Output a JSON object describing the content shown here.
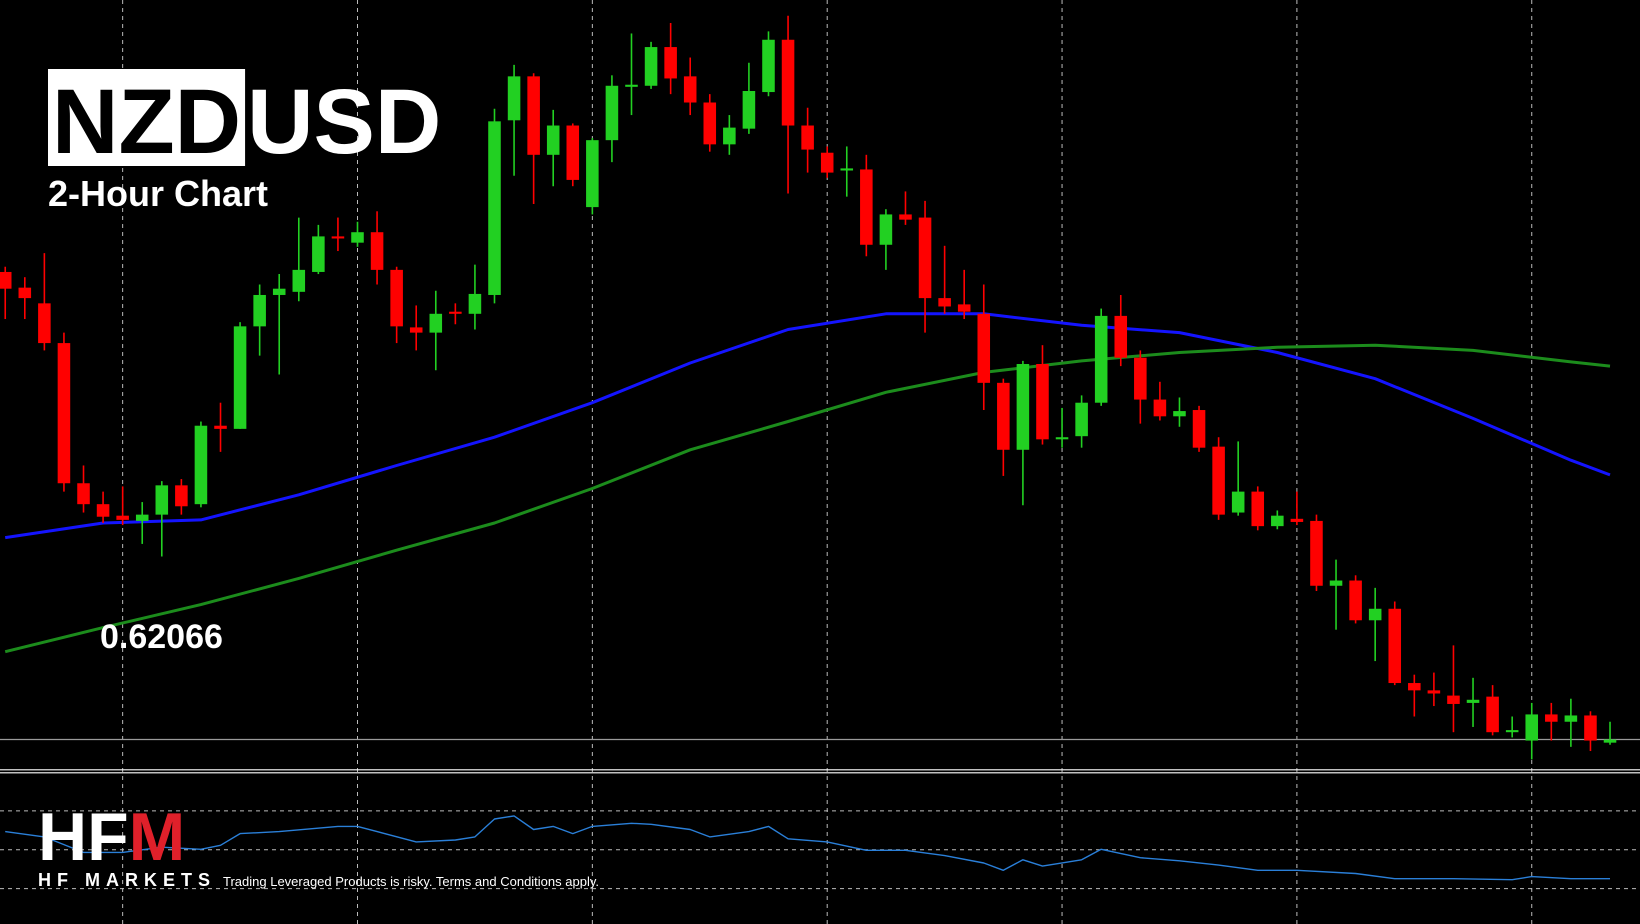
{
  "chart_data": {
    "type": "candlestick",
    "symbol_base": "NZD",
    "symbol_quote": "USD",
    "subtitle": "2-Hour Chart",
    "price_line": 0.62066,
    "up_color": "#22d022",
    "down_color": "#ff0000",
    "ylim": [
      0.6201,
      0.6348
    ],
    "x_grid": [
      6,
      18,
      30,
      42,
      54,
      66,
      78
    ],
    "open": [
      0.6296,
      0.6293,
      0.629,
      0.62824,
      0.62556,
      0.62516,
      0.62494,
      0.62484,
      0.62496,
      0.62552,
      0.62516,
      0.62666,
      0.6266,
      0.62856,
      0.62916,
      0.62922,
      0.6296,
      0.63028,
      0.63016,
      0.63036,
      0.62964,
      0.62854,
      0.62844,
      0.62884,
      0.6288,
      0.62916,
      0.6325,
      0.63334,
      0.63184,
      0.6324,
      0.63084,
      0.63212,
      0.63314,
      0.63316,
      0.6339,
      0.63334,
      0.63284,
      0.63204,
      0.63234,
      0.63304,
      0.63404,
      0.6324,
      0.63188,
      0.63154,
      0.63156,
      0.63012,
      0.6307,
      0.63064,
      0.6291,
      0.62898,
      0.6288,
      0.62748,
      0.6262,
      0.62784,
      0.6264,
      0.62646,
      0.6271,
      0.62876,
      0.62796,
      0.62716,
      0.62684,
      0.62696,
      0.62626,
      0.625,
      0.6254,
      0.62474,
      0.62488,
      0.62484,
      0.6236,
      0.6237,
      0.62294,
      0.62316,
      0.62174,
      0.6216,
      0.6215,
      0.62136,
      0.62148,
      0.6208,
      0.62064,
      0.62114,
      0.621,
      0.62112,
      0.6206
    ],
    "high": [
      0.6297,
      0.6295,
      0.62996,
      0.62844,
      0.6259,
      0.6254,
      0.6255,
      0.6252,
      0.6256,
      0.62564,
      0.62674,
      0.6271,
      0.62864,
      0.62936,
      0.62956,
      0.63064,
      0.6305,
      0.63064,
      0.63056,
      0.63076,
      0.6297,
      0.62896,
      0.62924,
      0.629,
      0.62974,
      0.63272,
      0.63356,
      0.6334,
      0.6327,
      0.63244,
      0.63216,
      0.63336,
      0.63416,
      0.634,
      0.63436,
      0.6337,
      0.633,
      0.6326,
      0.6336,
      0.6342,
      0.6345,
      0.63274,
      0.632,
      0.632,
      0.63184,
      0.6308,
      0.63114,
      0.63096,
      0.6301,
      0.62964,
      0.62936,
      0.62756,
      0.6279,
      0.6282,
      0.627,
      0.62724,
      0.6289,
      0.62916,
      0.6281,
      0.6275,
      0.6272,
      0.62704,
      0.62644,
      0.62636,
      0.6255,
      0.62504,
      0.6254,
      0.62496,
      0.6241,
      0.6238,
      0.62356,
      0.6233,
      0.6219,
      0.62194,
      0.62246,
      0.62184,
      0.6217,
      0.6211,
      0.62136,
      0.62136,
      0.62144,
      0.6212,
      0.621
    ],
    "low": [
      0.6287,
      0.6287,
      0.6281,
      0.6254,
      0.625,
      0.6248,
      0.62476,
      0.6244,
      0.62416,
      0.62496,
      0.6251,
      0.62616,
      0.6266,
      0.628,
      0.62764,
      0.62904,
      0.62956,
      0.63,
      0.63008,
      0.62936,
      0.62824,
      0.6281,
      0.62772,
      0.6286,
      0.6285,
      0.629,
      0.63144,
      0.6309,
      0.63124,
      0.63124,
      0.6307,
      0.6317,
      0.6326,
      0.6331,
      0.633,
      0.6326,
      0.6319,
      0.63184,
      0.63224,
      0.63296,
      0.6311,
      0.6315,
      0.6314,
      0.63104,
      0.6299,
      0.62964,
      0.6305,
      0.62844,
      0.6288,
      0.6287,
      0.62696,
      0.6257,
      0.62514,
      0.6263,
      0.62624,
      0.62624,
      0.62704,
      0.6278,
      0.6267,
      0.62676,
      0.62664,
      0.62616,
      0.62486,
      0.62494,
      0.62466,
      0.62468,
      0.62476,
      0.6235,
      0.62276,
      0.62288,
      0.62216,
      0.6217,
      0.6211,
      0.6213,
      0.6208,
      0.6209,
      0.62074,
      0.6207,
      0.62028,
      0.62064,
      0.62052,
      0.62044,
      0.62056
    ],
    "close": [
      0.62928,
      0.6291,
      0.62824,
      0.62556,
      0.62516,
      0.62492,
      0.62486,
      0.62496,
      0.62552,
      0.62512,
      0.62666,
      0.6266,
      0.62856,
      0.62916,
      0.62928,
      0.62964,
      0.63028,
      0.63024,
      0.63036,
      0.62964,
      0.62856,
      0.62844,
      0.6288,
      0.6288,
      0.62918,
      0.63248,
      0.63334,
      0.63184,
      0.6324,
      0.63136,
      0.63212,
      0.63316,
      0.63318,
      0.6339,
      0.6333,
      0.63284,
      0.63204,
      0.63236,
      0.63306,
      0.63404,
      0.6324,
      0.63194,
      0.6315,
      0.63158,
      0.63012,
      0.6307,
      0.6306,
      0.6291,
      0.62894,
      0.62884,
      0.62748,
      0.6262,
      0.62784,
      0.6264,
      0.62644,
      0.6271,
      0.62876,
      0.62796,
      0.62716,
      0.62684,
      0.62694,
      0.62624,
      0.62496,
      0.6254,
      0.62474,
      0.62494,
      0.62482,
      0.6236,
      0.6237,
      0.62294,
      0.62316,
      0.62174,
      0.6216,
      0.62154,
      0.62134,
      0.62142,
      0.6208,
      0.62084,
      0.62114,
      0.621,
      0.62112,
      0.62064,
      0.62066
    ],
    "ma_lines": [
      {
        "color": "#1414ff",
        "x": [
          0,
          5,
          10,
          15,
          20,
          25,
          30,
          35,
          40,
          45,
          50,
          55,
          60,
          65,
          70,
          75,
          80,
          82
        ],
        "values": [
          0.62452,
          0.6248,
          0.62486,
          0.62534,
          0.6259,
          0.62644,
          0.6271,
          0.62786,
          0.6285,
          0.6288,
          0.6288,
          0.62858,
          0.62844,
          0.62806,
          0.62756,
          0.6268,
          0.626,
          0.62572
        ]
      },
      {
        "color": "#1c8c1c",
        "x": [
          0,
          5,
          10,
          15,
          20,
          25,
          30,
          35,
          40,
          45,
          50,
          55,
          60,
          65,
          70,
          75,
          80,
          82
        ],
        "values": [
          0.62234,
          0.6228,
          0.62324,
          0.62374,
          0.62428,
          0.6248,
          0.62546,
          0.6262,
          0.62674,
          0.6273,
          0.62768,
          0.6279,
          0.62806,
          0.62816,
          0.6282,
          0.6281,
          0.62788,
          0.6278
        ]
      }
    ],
    "indicator": {
      "color": "#2a7fd8",
      "ylim": [
        12,
        90
      ],
      "levels": [
        70,
        50,
        30
      ],
      "x": [
        0,
        2,
        4,
        6,
        8,
        10,
        11,
        12,
        14,
        17,
        18,
        19,
        21,
        23,
        24,
        25,
        26,
        27,
        28,
        29,
        30,
        32,
        33,
        35,
        36,
        38,
        39,
        40,
        42,
        44,
        46,
        48,
        50,
        51,
        52,
        53,
        55,
        56,
        58,
        60,
        62,
        64,
        66,
        69,
        71,
        74,
        77,
        78,
        80,
        82
      ],
      "values": [
        59.3,
        56.6,
        48.6,
        48.6,
        51.3,
        50.2,
        52.3,
        58.3,
        59.3,
        62.0,
        62.0,
        59.3,
        54.0,
        55.0,
        56.6,
        65.8,
        67.4,
        60.4,
        62.0,
        58.3,
        62.0,
        63.6,
        63.1,
        60.4,
        56.6,
        59.3,
        62.0,
        55.6,
        54.0,
        49.7,
        49.7,
        47.0,
        43.2,
        39.4,
        44.8,
        41.6,
        44.8,
        50.2,
        45.9,
        44.3,
        42.1,
        39.4,
        39.4,
        37.8,
        35.1,
        35.1,
        34.6,
        36.2,
        35.1,
        35.1
      ]
    }
  },
  "brand": {
    "logo_a": "HF",
    "logo_b": "M",
    "name": "HF MARKETS",
    "disclaimer": "Trading Leveraged Products is risky. Terms and Conditions apply."
  }
}
